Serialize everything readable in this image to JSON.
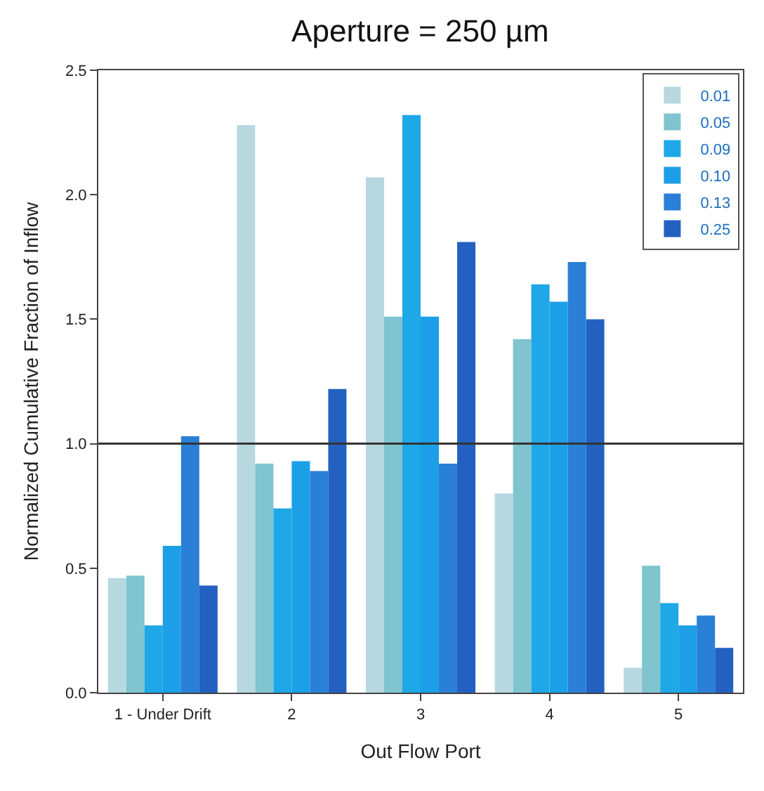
{
  "chart_data": {
    "type": "bar",
    "title": "Aperture = 250 µm",
    "xlabel": "Out Flow Port",
    "ylabel": "Normalized Cumulative Fraction of Inflow",
    "categories": [
      "1 - Under Drift",
      "2",
      "3",
      "4",
      "5"
    ],
    "series": [
      {
        "name": "0.01",
        "color": "#b8d8e0",
        "values": [
          0.46,
          2.28,
          2.07,
          0.8,
          0.1
        ]
      },
      {
        "name": "0.05",
        "color": "#7fc4cf",
        "values": [
          0.47,
          0.92,
          1.51,
          1.42,
          0.51
        ]
      },
      {
        "name": "0.09",
        "color": "#1ea8e8",
        "values": [
          0.27,
          0.74,
          2.32,
          1.64,
          0.36
        ]
      },
      {
        "name": "0.10",
        "color": "#1c9fe6",
        "values": [
          0.59,
          0.93,
          1.51,
          1.57,
          0.27
        ]
      },
      {
        "name": "0.13",
        "color": "#2a7fd6",
        "values": [
          1.03,
          0.89,
          0.92,
          1.73,
          0.31
        ]
      },
      {
        "name": "0.25",
        "color": "#2360c0",
        "values": [
          0.43,
          1.22,
          1.81,
          1.5,
          0.18
        ]
      }
    ],
    "ylim": [
      0,
      2.5
    ],
    "yticks": [
      {
        "value": 0,
        "label": "0.0"
      },
      {
        "value": 0.5,
        "label": "0.5"
      },
      {
        "value": 1,
        "label": "1.0"
      },
      {
        "value": 1.5,
        "label": "1.5"
      },
      {
        "value": 2,
        "label": "2.0"
      },
      {
        "value": 2.5,
        "label": "2.5"
      }
    ],
    "ref_lines": [
      {
        "axis": "y",
        "value": 1.0,
        "color": "#333333"
      }
    ],
    "legend": "top right"
  }
}
